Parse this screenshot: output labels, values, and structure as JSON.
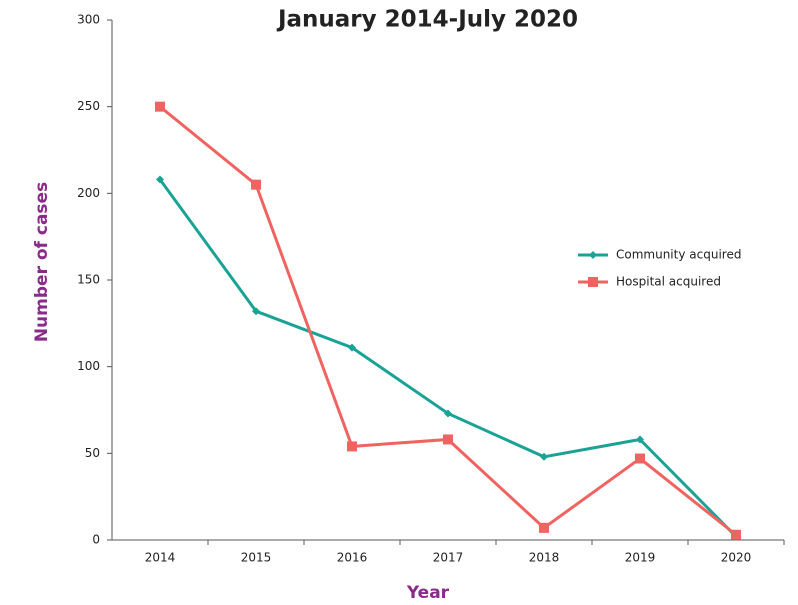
{
  "chart_data": {
    "type": "line",
    "title": "January 2014-July 2020",
    "x_label": "Year",
    "y_label": "Number of cases",
    "categories": [
      "2014",
      "2015",
      "2016",
      "2017",
      "2018",
      "2019",
      "2020"
    ],
    "series": [
      {
        "name": "Community acquired",
        "color": "#1aa394",
        "marker": "diamond",
        "values": [
          208,
          132,
          111,
          73,
          48,
          58,
          2
        ]
      },
      {
        "name": "Hospital acquired",
        "color": "#ef6461",
        "marker": "square",
        "values": [
          250,
          205,
          54,
          58,
          7,
          47,
          3
        ]
      }
    ],
    "ylim": [
      0,
      300
    ],
    "yticks": [
      0,
      50,
      100,
      150,
      200,
      250,
      300
    ],
    "grid": false,
    "legend": "right"
  }
}
